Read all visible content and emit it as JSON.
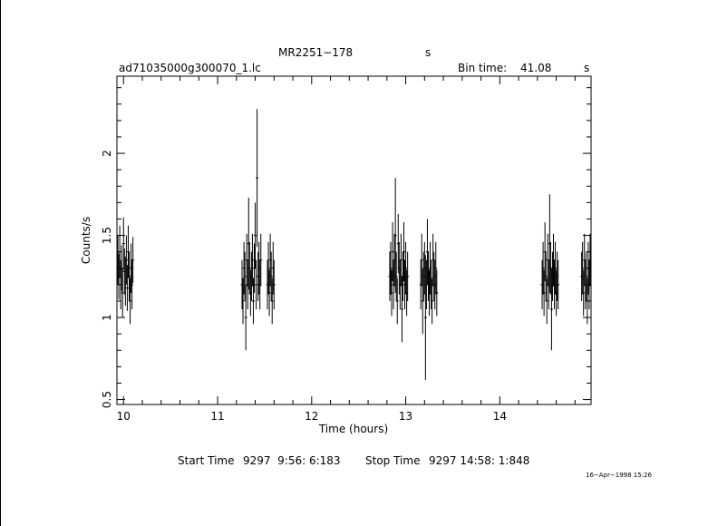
{
  "header": {
    "object": "MR2251−178",
    "object_units": "s",
    "filename": "ad71035000g300070_1.lc",
    "bin_time_label": "Bin time:",
    "bin_time_value": "41.08",
    "bin_time_units": "s"
  },
  "footer": {
    "start_label": "Start Time",
    "start_value": "9297  9:56: 6:183",
    "stop_label": "Stop Time",
    "stop_value": "9297 14:58: 1:848",
    "timestamp": "16−Apr−1998 15:26"
  },
  "colors": {
    "axis": "#000000",
    "data": "#000000",
    "background": "#ffffff"
  },
  "chart_data": {
    "type": "scatter",
    "xlabel": "Time (hours)",
    "ylabel": "Counts/s",
    "xlim": [
      9.93,
      14.97
    ],
    "ylim": [
      0.47,
      2.47
    ],
    "xticks": [
      10,
      11,
      12,
      13,
      14
    ],
    "yticks": [
      0.5,
      1,
      1.5,
      2
    ],
    "xtick_labels": [
      "10",
      "11",
      "12",
      "13",
      "14"
    ],
    "ytick_labels": [
      "0.5",
      "1",
      "1.5",
      "2"
    ],
    "grid": false,
    "series": [
      {
        "error_bars": true,
        "x": [
          9.94,
          9.95,
          9.96,
          9.97,
          9.98,
          9.99,
          10.0,
          10.01,
          10.02,
          10.03,
          10.04,
          10.05,
          10.06,
          10.07,
          10.08,
          10.09,
          10.1,
          11.26,
          11.27,
          11.28,
          11.29,
          11.3,
          11.31,
          11.32,
          11.33,
          11.34,
          11.35,
          11.36,
          11.37,
          11.38,
          11.39,
          11.4,
          11.41,
          11.42,
          11.43,
          11.44,
          11.45,
          11.46,
          11.53,
          11.54,
          11.55,
          11.56,
          11.57,
          11.58,
          11.59,
          11.6,
          12.83,
          12.84,
          12.85,
          12.86,
          12.87,
          12.88,
          12.89,
          12.9,
          12.91,
          12.92,
          12.93,
          12.94,
          12.95,
          12.96,
          12.97,
          12.98,
          12.99,
          13.0,
          13.01,
          13.02,
          13.16,
          13.17,
          13.18,
          13.19,
          13.2,
          13.21,
          13.22,
          13.23,
          13.24,
          13.25,
          13.26,
          13.27,
          13.28,
          13.29,
          13.3,
          13.31,
          13.32,
          13.33,
          14.45,
          14.46,
          14.47,
          14.48,
          14.49,
          14.5,
          14.51,
          14.52,
          14.53,
          14.54,
          14.55,
          14.56,
          14.57,
          14.58,
          14.59,
          14.6,
          14.61,
          14.62,
          14.87,
          14.88,
          14.89,
          14.9,
          14.91,
          14.92,
          14.93,
          14.94,
          14.95,
          14.96
        ],
        "y": [
          1.35,
          1.25,
          1.4,
          1.2,
          1.3,
          1.15,
          1.45,
          1.28,
          1.22,
          1.35,
          1.18,
          1.4,
          1.25,
          1.1,
          1.3,
          1.2,
          1.35,
          1.2,
          1.1,
          1.3,
          1.25,
          1.0,
          1.35,
          1.2,
          1.45,
          1.3,
          1.15,
          1.25,
          1.35,
          1.1,
          1.3,
          1.5,
          1.2,
          1.85,
          1.25,
          1.3,
          1.2,
          1.35,
          1.2,
          1.3,
          1.15,
          1.35,
          1.25,
          1.1,
          1.3,
          1.2,
          1.25,
          1.3,
          1.15,
          1.4,
          1.2,
          1.35,
          1.5,
          1.25,
          1.1,
          1.45,
          1.3,
          1.2,
          1.35,
          1.05,
          1.25,
          1.4,
          1.2,
          1.3,
          1.15,
          1.25,
          1.2,
          1.35,
          1.1,
          1.25,
          1.3,
          1.0,
          1.2,
          1.4,
          1.25,
          1.15,
          1.3,
          1.2,
          1.1,
          1.35,
          1.25,
          1.2,
          1.3,
          1.15,
          1.2,
          1.3,
          1.15,
          1.4,
          1.25,
          1.1,
          1.35,
          1.2,
          1.45,
          1.3,
          1.05,
          1.25,
          1.35,
          1.2,
          1.3,
          1.15,
          1.25,
          1.2,
          1.25,
          1.3,
          1.15,
          1.35,
          1.2,
          1.25,
          1.1,
          1.3,
          1.2,
          1.35
        ],
        "yerr": [
          0.15,
          0.14,
          0.16,
          0.15,
          0.14,
          0.15,
          0.16,
          0.14,
          0.15,
          0.15,
          0.14,
          0.16,
          0.15,
          0.14,
          0.15,
          0.15,
          0.14,
          0.15,
          0.14,
          0.16,
          0.15,
          0.2,
          0.16,
          0.15,
          0.28,
          0.16,
          0.14,
          0.15,
          0.16,
          0.14,
          0.15,
          0.2,
          0.15,
          0.42,
          0.15,
          0.16,
          0.15,
          0.16,
          0.15,
          0.16,
          0.14,
          0.16,
          0.15,
          0.14,
          0.16,
          0.15,
          0.15,
          0.16,
          0.14,
          0.18,
          0.15,
          0.16,
          0.35,
          0.15,
          0.14,
          0.18,
          0.16,
          0.15,
          0.16,
          0.2,
          0.15,
          0.18,
          0.15,
          0.16,
          0.14,
          0.15,
          0.15,
          0.16,
          0.2,
          0.15,
          0.16,
          0.38,
          0.15,
          0.2,
          0.15,
          0.14,
          0.16,
          0.15,
          0.14,
          0.16,
          0.15,
          0.15,
          0.16,
          0.14,
          0.15,
          0.16,
          0.14,
          0.18,
          0.15,
          0.14,
          0.16,
          0.15,
          0.3,
          0.16,
          0.25,
          0.15,
          0.16,
          0.15,
          0.16,
          0.14,
          0.15,
          0.15,
          0.15,
          0.16,
          0.14,
          0.16,
          0.15,
          0.15,
          0.14,
          0.16,
          0.15,
          0.16
        ]
      }
    ]
  }
}
